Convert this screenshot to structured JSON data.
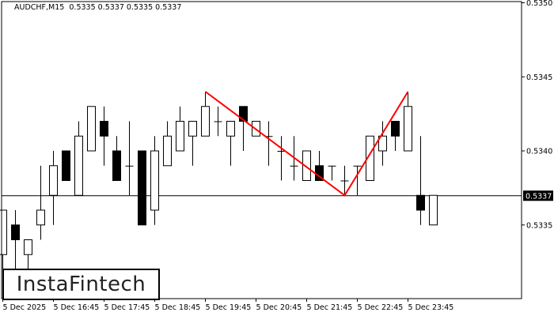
{
  "header": {
    "symbol": "AUDCHF,M15",
    "ohlc_text": "0.5335 0.5337 0.5335 0.5337"
  },
  "logo": {
    "text": "InstaFintech"
  },
  "chart_data": {
    "type": "candlestick",
    "title": "AUDCHF,M15",
    "ylim": [
      0.533,
      0.535
    ],
    "y_ticks": [
      "0.5350",
      "0.5345",
      "0.5340",
      "0.5335"
    ],
    "x_tick_labels": [
      "5 Dec 2025",
      "5 Dec 16:45",
      "5 Dec 17:45",
      "5 Dec 18:45",
      "5 Dec 19:45",
      "5 Dec 20:45",
      "5 Dec 21:45",
      "5 Dec 22:45",
      "5 Dec 23:45"
    ],
    "x_tick_candle_index": [
      0,
      4,
      8,
      12,
      16,
      20,
      24,
      28,
      32
    ],
    "current_price": "0.5337",
    "candles": [
      [
        0.5333,
        0.5336,
        0.5331,
        0.5336
      ],
      [
        0.5335,
        0.5336,
        0.5332,
        0.5334
      ],
      [
        0.5333,
        0.5334,
        0.5332,
        0.5334
      ],
      [
        0.5335,
        0.5339,
        0.5334,
        0.5336
      ],
      [
        0.5337,
        0.534,
        0.5335,
        0.5339
      ],
      [
        0.534,
        0.534,
        0.5338,
        0.5338
      ],
      [
        0.5337,
        0.5342,
        0.5337,
        0.5341
      ],
      [
        0.534,
        0.5343,
        0.534,
        0.5343
      ],
      [
        0.5342,
        0.5343,
        0.5339,
        0.5341
      ],
      [
        0.534,
        0.5341,
        0.5338,
        0.5338
      ],
      [
        0.5339,
        0.5342,
        0.5337,
        0.5339
      ],
      [
        0.534,
        0.534,
        0.5335,
        0.5335
      ],
      [
        0.5336,
        0.5341,
        0.5335,
        0.534
      ],
      [
        0.5339,
        0.5342,
        0.5339,
        0.5341
      ],
      [
        0.534,
        0.5343,
        0.534,
        0.5342
      ],
      [
        0.5341,
        0.5342,
        0.5339,
        0.5342
      ],
      [
        0.5341,
        0.5344,
        0.5341,
        0.5343
      ],
      [
        0.5342,
        0.5343,
        0.5341,
        0.5342
      ],
      [
        0.5341,
        0.5342,
        0.5339,
        0.5342
      ],
      [
        0.5343,
        0.5343,
        0.534,
        0.5342
      ],
      [
        0.5341,
        0.5342,
        0.5341,
        0.5342
      ],
      [
        0.5341,
        0.5342,
        0.5339,
        0.5341
      ],
      [
        0.534,
        0.5341,
        0.5338,
        0.534
      ],
      [
        0.5339,
        0.5341,
        0.5338,
        0.5339
      ],
      [
        0.5338,
        0.534,
        0.5338,
        0.534
      ],
      [
        0.5339,
        0.534,
        0.5338,
        0.5338
      ],
      [
        0.5339,
        0.5339,
        0.5338,
        0.5339
      ],
      [
        0.5338,
        0.5339,
        0.5337,
        0.5338
      ],
      [
        0.5339,
        0.5339,
        0.5337,
        0.5339
      ],
      [
        0.5338,
        0.5341,
        0.5338,
        0.5341
      ],
      [
        0.534,
        0.5342,
        0.5339,
        0.5341
      ],
      [
        0.5342,
        0.5342,
        0.534,
        0.5341
      ],
      [
        0.534,
        0.5344,
        0.534,
        0.5343
      ],
      [
        0.5337,
        0.5341,
        0.5335,
        0.5336
      ],
      [
        0.5335,
        0.5337,
        0.5335,
        0.5337
      ]
    ],
    "ohlc_order": [
      "open",
      "high",
      "low",
      "close"
    ],
    "pattern_line": {
      "color": "#ff0000",
      "points": [
        [
          16,
          0.5344
        ],
        [
          27,
          0.5337
        ],
        [
          32,
          0.5344
        ]
      ]
    },
    "colors": {
      "bull_body": "#ffffff",
      "bear_body": "#000000",
      "outline": "#000000",
      "pattern": "#ff0000"
    }
  }
}
